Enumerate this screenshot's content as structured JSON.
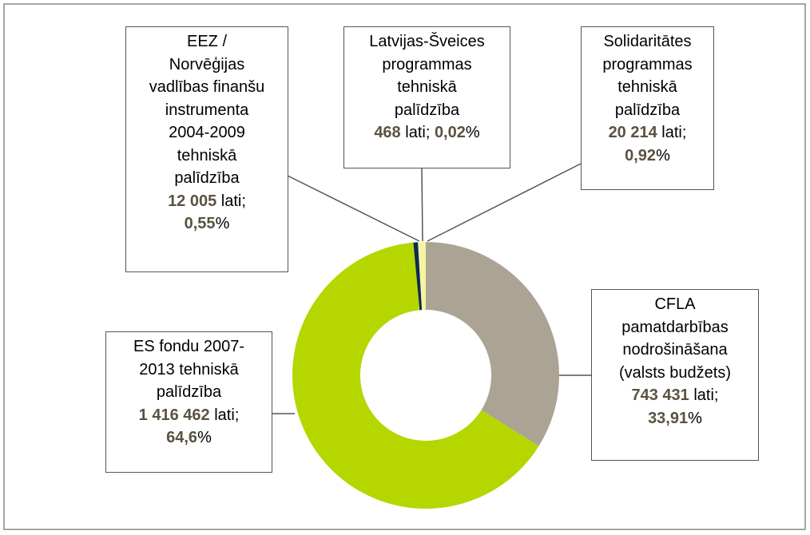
{
  "chart_data": {
    "type": "pie",
    "donut": true,
    "categories": [
      "CFLA\npamatdarbības\nnodrošināšana\n(valsts budžets)",
      "ES fondu 2007-\n2013 tehniskā\npalīdzība",
      "EEZ /\nNorvēģijas\nvadlības finanšu\ninstrumenta\n2004-2009\ntehniskā\npalīdzība",
      "Latvijas-Šveices\nprogrammas\ntehniskā\npalīdzība",
      "Solidaritātes\nprogrammas\ntehniskā\npalīdzība"
    ],
    "values": [
      743431,
      1416462,
      12005,
      468,
      20214
    ],
    "value_labels": [
      "743 431",
      "1 416 462",
      "12 005",
      "468",
      "20 214"
    ],
    "value_unit": "lati;",
    "percents": [
      33.91,
      64.6,
      0.55,
      0.02,
      0.92
    ],
    "percent_labels": [
      "33,91",
      "64,6",
      "0,55",
      "0,02",
      "0,92"
    ],
    "percent_unit": "%",
    "colors": [
      "#aba394",
      "#b6d600",
      "#102a4c",
      "#4f81bd",
      "#f6f4a0"
    ]
  }
}
